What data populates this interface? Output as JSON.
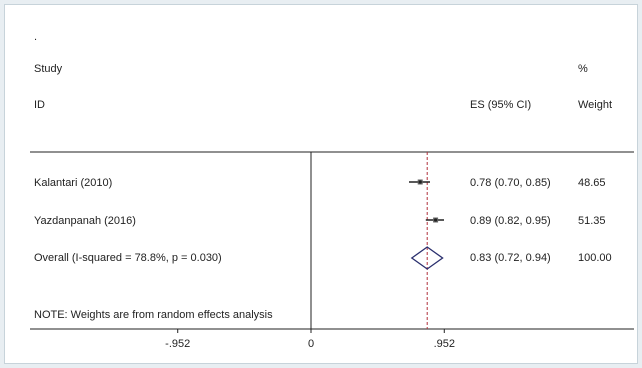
{
  "chart_data": {
    "type": "forest",
    "dot_mark": ".",
    "headers": {
      "study_top": "Study",
      "study_bottom": "ID",
      "es": "ES (95% CI)",
      "weight_top": "%",
      "weight_bottom": "Weight"
    },
    "studies": [
      {
        "label": "Kalantari (2010)",
        "es": 0.78,
        "ci_low": 0.7,
        "ci_high": 0.85,
        "es_text": "0.78 (0.70, 0.85)",
        "weight": "48.65"
      },
      {
        "label": "Yazdanpanah (2016)",
        "es": 0.89,
        "ci_low": 0.82,
        "ci_high": 0.95,
        "es_text": "0.89 (0.82, 0.95)",
        "weight": "51.35"
      }
    ],
    "overall": {
      "label": "Overall  (I-squared = 78.8%, p = 0.030)",
      "es": 0.83,
      "ci_low": 0.72,
      "ci_high": 0.94,
      "es_text": "0.83 (0.72, 0.94)",
      "weight": "100.00"
    },
    "note": "NOTE: Weights are from random effects analysis",
    "x_ticks": [
      {
        "value": -0.952,
        "label": "-.952"
      },
      {
        "value": 0,
        "label": "0"
      },
      {
        "value": 0.952,
        "label": ".952"
      }
    ],
    "xlim": [
      -1.389,
      1.389
    ],
    "reference_line": 0,
    "pooled_line": 0.83,
    "colors": {
      "pooled_line": "#b0303c",
      "diamond": "#2a2f6e",
      "marker": "#222222"
    }
  }
}
